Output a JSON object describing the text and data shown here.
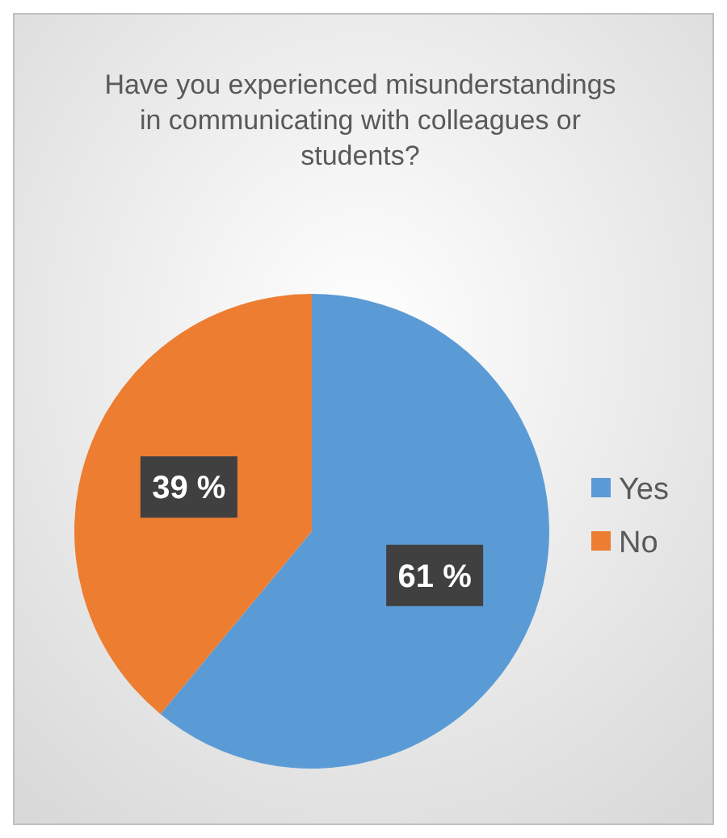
{
  "chart_data": {
    "type": "pie",
    "title": "Have you experienced misunderstandings in communicating with colleagues or students?",
    "categories": [
      "Yes",
      "No"
    ],
    "values": [
      61,
      39
    ],
    "colors": [
      "#5b9bd5",
      "#ed7d31"
    ],
    "value_labels": [
      "61 %",
      "39 %"
    ],
    "legend": "right"
  }
}
